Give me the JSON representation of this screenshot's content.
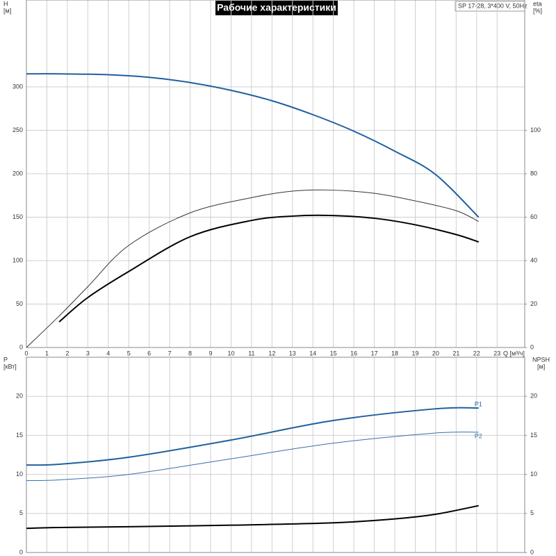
{
  "chart_data": [
    {
      "type": "line",
      "title": "Рабочие характеристики",
      "annotation": "SP 17-28, 3*400 V, 50Hz",
      "ylabel": "H",
      "yunit": "[м]",
      "y2label": "eta",
      "y2unit": "[%]",
      "xlabel": "Q [м³/ч]",
      "xlim": [
        0,
        24.35
      ],
      "xticks": [
        0,
        1,
        2,
        3,
        4,
        5,
        6,
        7,
        8,
        9,
        10,
        11,
        12,
        13,
        14,
        15,
        16,
        17,
        18,
        19,
        20,
        21,
        22,
        23
      ],
      "ylim": [
        0,
        400
      ],
      "yticks": [
        0,
        50,
        100,
        150,
        200,
        250,
        300
      ],
      "y2lim": [
        0,
        160
      ],
      "y2ticks": [
        0,
        20,
        40,
        60,
        80,
        100
      ],
      "grid": true,
      "series": [
        {
          "color": "#1f5fa0",
          "x": [
            0,
            1.6,
            4,
            6,
            8,
            10,
            12,
            14,
            16,
            18,
            20,
            22.1
          ],
          "values": [
            315,
            315,
            314,
            311,
            305,
            296,
            284,
            268,
            249,
            226,
            199,
            150
          ]
        },
        {
          "color": "#333333",
          "axis": "y2",
          "x": [
            0,
            1.6,
            3,
            5,
            8,
            11,
            13,
            14.8,
            17,
            19,
            21,
            22.1
          ],
          "values": [
            0,
            14.5,
            28,
            47,
            62,
            69,
            72,
            72.5,
            71,
            67.5,
            63,
            58
          ]
        },
        {
          "color": "#000000",
          "axis": "y2",
          "x": [
            1.6,
            3,
            5,
            8,
            11,
            13,
            14.8,
            17,
            19,
            21,
            22.1
          ],
          "values": [
            11.8,
            23,
            35,
            51,
            58.5,
            60.5,
            60.8,
            59.5,
            56.5,
            52,
            48.6
          ]
        }
      ]
    },
    {
      "type": "line",
      "ylabel": "P",
      "yunit": "[кВт]",
      "y2label": "NPSH",
      "y2unit": "[м]",
      "xlim": [
        0,
        24.35
      ],
      "ylim": [
        0,
        25
      ],
      "yticks": [
        0,
        5,
        10,
        15,
        20
      ],
      "y2lim": [
        0,
        25
      ],
      "y2ticks": [
        0,
        5,
        10,
        15,
        20
      ],
      "grid": true,
      "series": [
        {
          "name": "P1",
          "color": "#1f5fa0",
          "x": [
            0,
            1.6,
            5,
            10,
            15,
            20,
            22.1
          ],
          "values": [
            11.2,
            11.3,
            12.2,
            14.4,
            16.9,
            18.4,
            18.5
          ]
        },
        {
          "name": "P2",
          "color": "#3a6ea8",
          "x": [
            0,
            1.6,
            5,
            10,
            15,
            20,
            22.1
          ],
          "values": [
            9.2,
            9.3,
            10.0,
            12.0,
            14.0,
            15.3,
            15.4
          ]
        },
        {
          "color": "#000000",
          "axis": "y2",
          "x": [
            0,
            1.6,
            5,
            10,
            15,
            18,
            20,
            22.1
          ],
          "values": [
            3.1,
            3.2,
            3.3,
            3.5,
            3.8,
            4.3,
            4.9,
            6.0
          ]
        }
      ]
    }
  ]
}
